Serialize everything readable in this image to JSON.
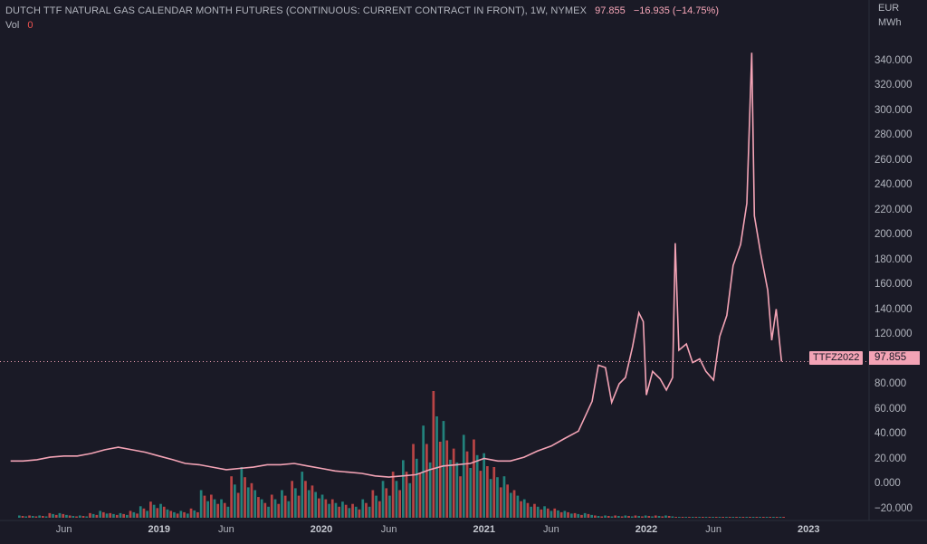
{
  "header": {
    "title": "DUTCH TTF NATURAL GAS CALENDAR MONTH FUTURES (CONTINUOUS: CURRENT CONTRACT IN FRONT), 1W, NYMEX",
    "price": "97.855",
    "change": "−16.935 (−14.75%)",
    "vol_label": "Vol",
    "vol_value": "0"
  },
  "axis": {
    "unit_line1": "EUR",
    "unit_line2": "MWh",
    "y_ticks": [
      "340.000",
      "320.000",
      "300.000",
      "280.000",
      "260.000",
      "240.000",
      "220.000",
      "200.000",
      "180.000",
      "160.000",
      "140.000",
      "120.000",
      "100.000",
      "80.000",
      "60.000",
      "40.000",
      "20.000",
      "0.000",
      "−20.000"
    ],
    "x_ticks": [
      {
        "label": "Jun",
        "year": false
      },
      {
        "label": "2019",
        "year": true
      },
      {
        "label": "Jun",
        "year": false
      },
      {
        "label": "2020",
        "year": true
      },
      {
        "label": "Jun",
        "year": false
      },
      {
        "label": "2021",
        "year": true
      },
      {
        "label": "Jun",
        "year": false
      },
      {
        "label": "2022",
        "year": true
      },
      {
        "label": "Jun",
        "year": false
      },
      {
        "label": "2023",
        "year": true
      }
    ]
  },
  "last_price": {
    "symbol": "TTFZ2022",
    "value": "97.855"
  },
  "colors": {
    "background": "#1a1a26",
    "line": "#f3a3b5",
    "volume_up": "#26a69a",
    "volume_down": "#ef5350",
    "text": "#b2b5be"
  },
  "chart_data": {
    "type": "line",
    "title": "DUTCH TTF NATURAL GAS CALENDAR MONTH FUTURES (CONTINUOUS: CURRENT CONTRACT IN FRONT), 1W, NYMEX",
    "ylabel": "EUR / MWh",
    "ylim": [
      -30,
      355
    ],
    "grid": false,
    "last_value": 97.855,
    "series": [
      {
        "values_kind": "price",
        "points": [
          [
            "2018-02-01",
            18
          ],
          [
            "2018-03-01",
            18
          ],
          [
            "2018-04-01",
            19
          ],
          [
            "2018-05-01",
            21
          ],
          [
            "2018-06-01",
            22
          ],
          [
            "2018-07-01",
            22
          ],
          [
            "2018-08-01",
            24
          ],
          [
            "2018-09-01",
            27
          ],
          [
            "2018-10-01",
            29
          ],
          [
            "2018-11-01",
            27
          ],
          [
            "2018-12-01",
            25
          ],
          [
            "2019-01-01",
            22
          ],
          [
            "2019-02-01",
            19
          ],
          [
            "2019-03-01",
            16
          ],
          [
            "2019-04-01",
            15
          ],
          [
            "2019-05-01",
            13
          ],
          [
            "2019-06-01",
            11
          ],
          [
            "2019-07-01",
            12
          ],
          [
            "2019-08-01",
            13
          ],
          [
            "2019-09-01",
            15
          ],
          [
            "2019-10-01",
            15
          ],
          [
            "2019-11-01",
            16
          ],
          [
            "2019-12-01",
            14
          ],
          [
            "2020-01-01",
            12
          ],
          [
            "2020-02-01",
            10
          ],
          [
            "2020-03-01",
            9
          ],
          [
            "2020-04-01",
            8
          ],
          [
            "2020-05-01",
            6
          ],
          [
            "2020-06-01",
            5
          ],
          [
            "2020-07-01",
            6
          ],
          [
            "2020-08-01",
            7
          ],
          [
            "2020-09-01",
            11
          ],
          [
            "2020-10-01",
            14
          ],
          [
            "2020-11-01",
            15
          ],
          [
            "2020-12-01",
            16
          ],
          [
            "2021-01-01",
            20
          ],
          [
            "2021-02-01",
            18
          ],
          [
            "2021-03-01",
            18
          ],
          [
            "2021-04-01",
            21
          ],
          [
            "2021-05-01",
            26
          ],
          [
            "2021-06-01",
            30
          ],
          [
            "2021-07-01",
            36
          ],
          [
            "2021-08-01",
            42
          ],
          [
            "2021-09-01",
            66
          ],
          [
            "2021-09-15",
            95
          ],
          [
            "2021-10-01",
            93
          ],
          [
            "2021-10-15",
            65
          ],
          [
            "2021-11-01",
            80
          ],
          [
            "2021-11-15",
            85
          ],
          [
            "2021-12-01",
            110
          ],
          [
            "2021-12-15",
            137
          ],
          [
            "2021-12-25",
            130
          ],
          [
            "2022-01-01",
            71
          ],
          [
            "2022-01-15",
            90
          ],
          [
            "2022-02-01",
            84
          ],
          [
            "2022-02-15",
            75
          ],
          [
            "2022-03-01",
            85
          ],
          [
            "2022-03-07",
            193
          ],
          [
            "2022-03-15",
            107
          ],
          [
            "2022-04-01",
            112
          ],
          [
            "2022-04-15",
            97
          ],
          [
            "2022-05-01",
            100
          ],
          [
            "2022-05-15",
            90
          ],
          [
            "2022-06-01",
            83
          ],
          [
            "2022-06-15",
            118
          ],
          [
            "2022-07-01",
            135
          ],
          [
            "2022-07-15",
            175
          ],
          [
            "2022-08-01",
            192
          ],
          [
            "2022-08-15",
            225
          ],
          [
            "2022-08-26",
            346
          ],
          [
            "2022-09-01",
            215
          ],
          [
            "2022-09-15",
            185
          ],
          [
            "2022-10-01",
            155
          ],
          [
            "2022-10-10",
            115
          ],
          [
            "2022-10-20",
            140
          ],
          [
            "2022-11-01",
            97.855
          ]
        ]
      },
      {
        "values_kind": "volume",
        "name": "Vol",
        "values": [
          1,
          1,
          1,
          2,
          2,
          1,
          1,
          2,
          3,
          2,
          2,
          3,
          5,
          7,
          6,
          3,
          3,
          4,
          12,
          10,
          8,
          18,
          22,
          15,
          8,
          10,
          12,
          16,
          20,
          14,
          10,
          8,
          7,
          6,
          8,
          12,
          16,
          20,
          25,
          32,
          40,
          55,
          42,
          30,
          36,
          34,
          28,
          22,
          18,
          12,
          8,
          6,
          5,
          4,
          3,
          2,
          2,
          1,
          1,
          1,
          1,
          1,
          1,
          1,
          1,
          0,
          0,
          0,
          0,
          0,
          0,
          0,
          0,
          0,
          0,
          0
        ]
      }
    ]
  }
}
